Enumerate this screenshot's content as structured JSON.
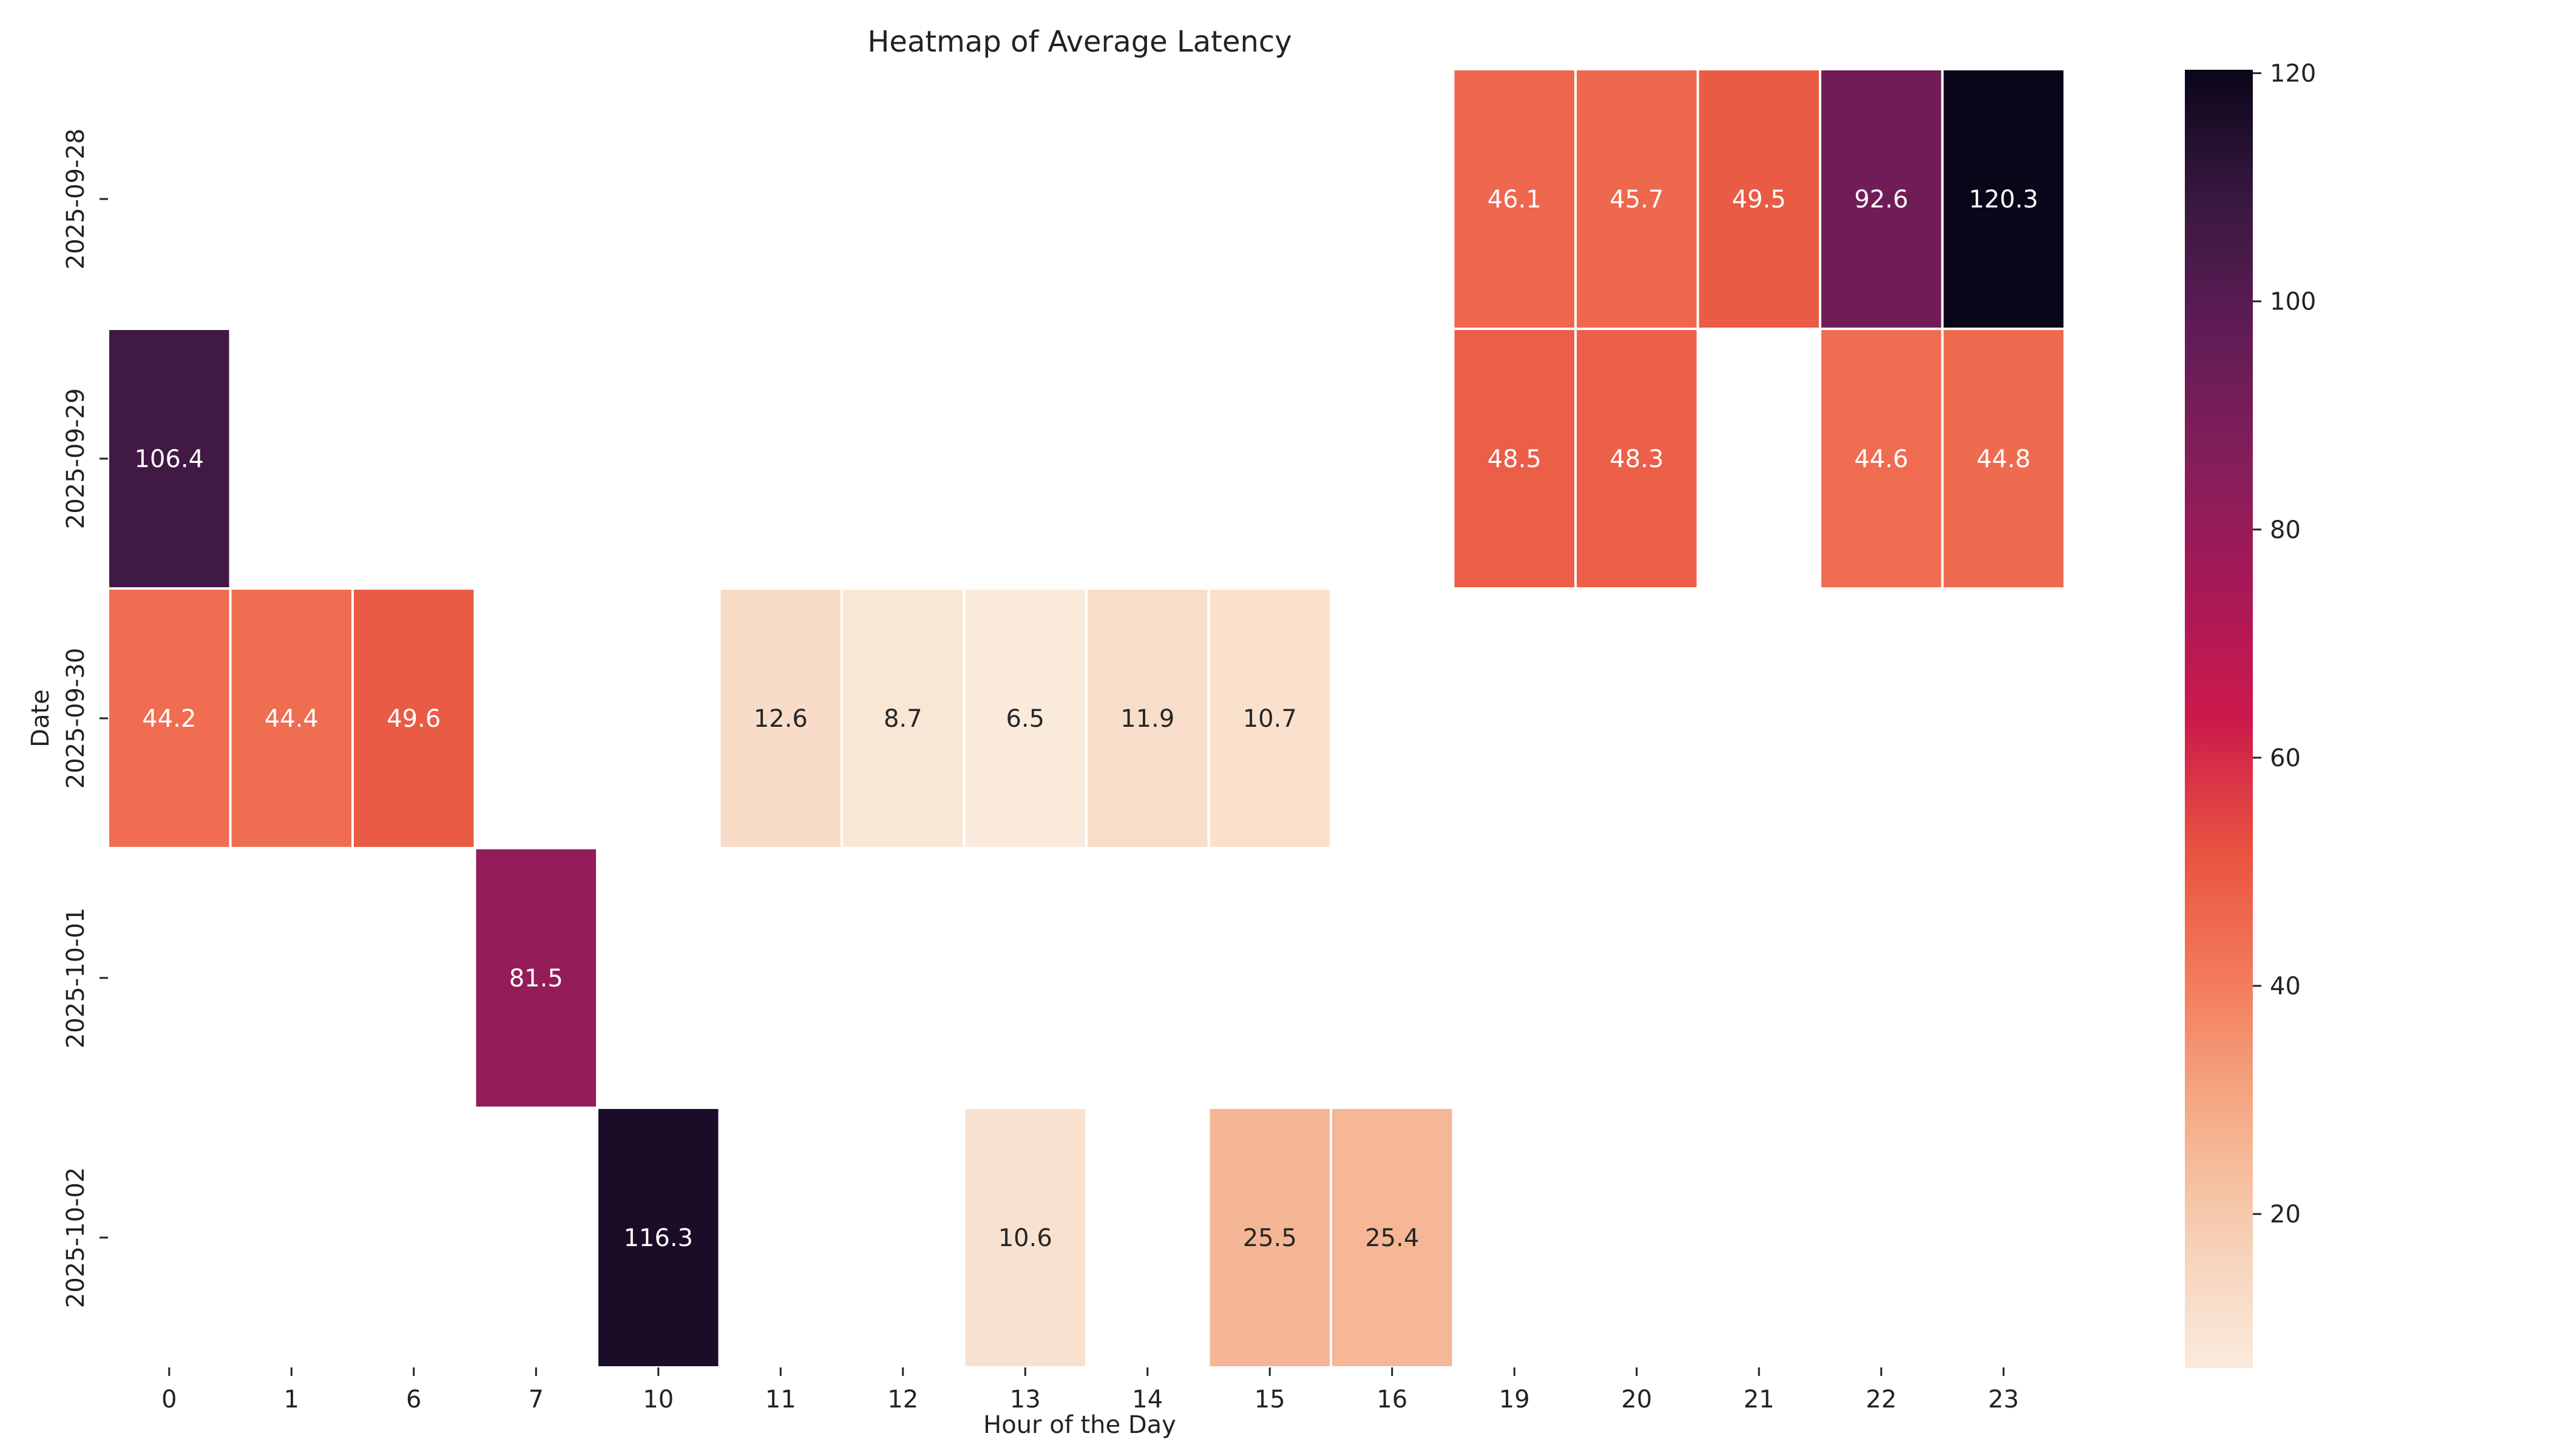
{
  "chart_data": {
    "type": "heatmap",
    "title": "Heatmap of Average Latency",
    "xlabel": "Hour of the Day",
    "ylabel": "Date",
    "x": [
      "0",
      "1",
      "6",
      "7",
      "10",
      "11",
      "12",
      "13",
      "14",
      "15",
      "16",
      "19",
      "20",
      "21",
      "22",
      "23"
    ],
    "y": [
      "2025-09-28",
      "2025-09-29",
      "2025-09-30",
      "2025-10-01",
      "2025-10-02"
    ],
    "values": [
      [
        null,
        null,
        null,
        null,
        null,
        null,
        null,
        null,
        null,
        null,
        null,
        46.1,
        45.7,
        49.5,
        92.6,
        120.3
      ],
      [
        106.4,
        null,
        null,
        null,
        null,
        null,
        null,
        null,
        null,
        null,
        null,
        48.5,
        48.3,
        null,
        44.6,
        44.8
      ],
      [
        44.2,
        44.4,
        49.6,
        null,
        null,
        12.6,
        8.7,
        6.5,
        11.9,
        10.7,
        null,
        null,
        null,
        null,
        null,
        null
      ],
      [
        null,
        null,
        null,
        81.5,
        null,
        null,
        null,
        null,
        null,
        null,
        null,
        null,
        null,
        null,
        null,
        null
      ],
      [
        null,
        null,
        null,
        null,
        116.3,
        null,
        null,
        10.6,
        null,
        25.5,
        25.4,
        null,
        null,
        null,
        null,
        null
      ]
    ],
    "colorbar": {
      "colormap": "rocket_r",
      "range": [
        6.5,
        120.3
      ],
      "ticks": [
        20,
        40,
        60,
        80,
        100,
        120
      ]
    },
    "annotations": "cell values shown with one decimal"
  }
}
